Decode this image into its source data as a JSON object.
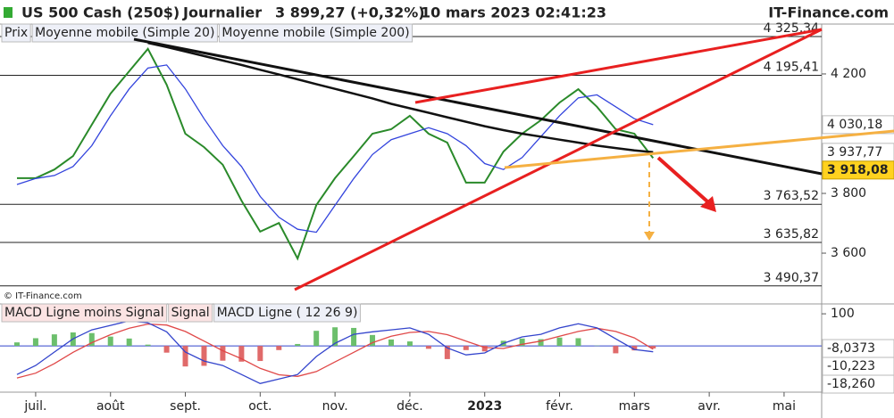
{
  "header": {
    "symbol": "US 500 Cash (250$)",
    "period": "Journalier",
    "quote": "3 899,27 (+0,32%)",
    "datetime": "10 mars 2023 02:41:23",
    "site": "IT-Finance.com"
  },
  "watermark": "© IT-Finance.com",
  "chart_data": [
    {
      "type": "line",
      "categories": [
        null,
        "juil.",
        null,
        null,
        null,
        "août",
        null,
        null,
        null,
        "sept.",
        null,
        null,
        null,
        "oct.",
        null,
        null,
        null,
        "nov.",
        null,
        null,
        null,
        "déc.",
        null,
        null,
        null,
        "2023",
        null,
        null,
        null,
        "févr.",
        null,
        null,
        null,
        "mars",
        null,
        null,
        null,
        "avr.",
        null,
        null,
        null,
        "mai",
        null,
        null
      ],
      "series": [
        {
          "name": "Prix",
          "color": "#2a8a2a",
          "values": [
            3851,
            3851,
            3880,
            3925,
            4030,
            4134,
            4209,
            4284,
            4164,
            4000,
            3955,
            3896,
            3776,
            3672,
            3701,
            3582,
            3761,
            3851,
            3925,
            4000,
            4015,
            4060,
            4000,
            3970,
            3836,
            3836,
            3940,
            4000,
            4045,
            4104,
            4149,
            4090,
            4015,
            4000,
            3918.08,
            null,
            null,
            null,
            null,
            null,
            null,
            null,
            null,
            null
          ],
          "value_labels": [
            null,
            null,
            null,
            null,
            null,
            null,
            null,
            null,
            null,
            null,
            null,
            null,
            null,
            null,
            null,
            null,
            null,
            null,
            null,
            null,
            null,
            null,
            null,
            null,
            null,
            null,
            null,
            null,
            null,
            null,
            null,
            null,
            null,
            null,
            "3 918,08",
            null,
            null,
            null,
            null,
            null,
            null,
            null,
            null,
            null
          ]
        },
        {
          "name": "Moyenne mobile (Simple 20)",
          "color": "#3344dd",
          "values": [
            3830,
            3850,
            3860,
            3890,
            3960,
            4060,
            4150,
            4220,
            4230,
            4150,
            4050,
            3960,
            3890,
            3790,
            3720,
            3680,
            3670,
            3760,
            3850,
            3930,
            3980,
            4000,
            4020,
            4000,
            3960,
            3900,
            3880,
            3920,
            3990,
            4060,
            4120,
            4130,
            4090,
            4050,
            4030.18,
            null,
            null,
            null,
            null,
            null,
            null,
            null,
            null,
            null
          ],
          "value_labels": [
            null,
            null,
            null,
            null,
            null,
            null,
            null,
            null,
            null,
            null,
            null,
            null,
            null,
            null,
            null,
            null,
            null,
            null,
            null,
            null,
            null,
            null,
            null,
            null,
            null,
            null,
            null,
            null,
            null,
            null,
            null,
            null,
            null,
            null,
            "4 030,18",
            null,
            null,
            null,
            null,
            null,
            null,
            null,
            null,
            null
          ]
        },
        {
          "name": "Moyenne mobile (Simple 200)",
          "color": "#111111",
          "values": [
            null,
            null,
            null,
            null,
            null,
            null,
            null,
            4304,
            4290,
            4275,
            4260,
            4245,
            4230,
            4214,
            4198,
            4182,
            4166,
            4150,
            4134,
            4118,
            4100,
            4085,
            4070,
            4055,
            4040,
            4025,
            4012,
            4000,
            3990,
            3980,
            3970,
            3960,
            3952,
            3944,
            3937.77,
            null,
            null,
            null,
            null,
            null,
            null,
            null,
            null,
            null
          ],
          "value_labels": [
            null,
            null,
            null,
            null,
            null,
            null,
            null,
            null,
            null,
            null,
            null,
            null,
            null,
            null,
            null,
            null,
            null,
            null,
            null,
            null,
            null,
            null,
            null,
            null,
            null,
            null,
            null,
            null,
            null,
            null,
            null,
            null,
            null,
            null,
            "3 937,77",
            null,
            null,
            null,
            null,
            null,
            null,
            null,
            null,
            null
          ]
        }
      ],
      "levels": [
        {
          "value": 4325.34,
          "label": "4 325,34"
        },
        {
          "value": 4195.41,
          "label": "4 195,41"
        },
        {
          "value": 3763.52,
          "label": "3 763,52"
        },
        {
          "value": 3635.82,
          "label": "3 635,82"
        },
        {
          "value": 3490.37,
          "label": "3 490,37"
        }
      ],
      "ylim": [
        3433,
        4364
      ],
      "yticks": [
        {
          "value": 4200,
          "label": "4 200"
        },
        {
          "value": 3800,
          "label": "3 800"
        },
        {
          "value": 3600,
          "label": "3 600"
        }
      ]
    },
    {
      "type": "line",
      "series": [
        {
          "name": "MACD Ligne moins Signal",
          "kind": "bar",
          "color": "#e06a6a",
          "positive_color": "#6cbf6c",
          "values": [
            11,
            24,
            36,
            42,
            40,
            29,
            23,
            4,
            -21,
            -64,
            -62,
            -46,
            -49,
            -47,
            -13,
            6,
            47,
            58,
            56,
            34,
            20,
            14,
            -9,
            -41,
            -13,
            -17,
            16,
            23,
            21,
            26,
            24,
            1,
            -23,
            -14,
            -8.0373,
            null,
            null,
            null,
            null,
            null,
            null,
            null,
            null,
            null
          ],
          "value_labels": [
            null,
            null,
            null,
            null,
            null,
            null,
            null,
            null,
            null,
            null,
            null,
            null,
            null,
            null,
            null,
            null,
            null,
            null,
            null,
            null,
            null,
            null,
            null,
            null,
            null,
            null,
            null,
            null,
            null,
            null,
            null,
            null,
            null,
            null,
            "-8,0373",
            null,
            null,
            null,
            null,
            null,
            null,
            null,
            null,
            null
          ]
        },
        {
          "name": "Signal",
          "kind": "line",
          "color": "#e04848",
          "values": [
            -100,
            -85,
            -55,
            -20,
            10,
            35,
            55,
            68,
            65,
            45,
            15,
            -15,
            -40,
            -70,
            -90,
            -95,
            -80,
            -50,
            -20,
            10,
            30,
            42,
            45,
            35,
            15,
            -5,
            -8,
            5,
            15,
            30,
            45,
            55,
            45,
            25,
            -10.223,
            null,
            null,
            null,
            null,
            null,
            null,
            null,
            null,
            null
          ],
          "value_labels": [
            null,
            null,
            null,
            null,
            null,
            null,
            null,
            null,
            null,
            null,
            null,
            null,
            null,
            null,
            null,
            null,
            null,
            null,
            null,
            null,
            null,
            null,
            null,
            null,
            null,
            null,
            null,
            null,
            null,
            null,
            null,
            null,
            null,
            null,
            "-10,223",
            null,
            null,
            null,
            null,
            null,
            null,
            null,
            null,
            null
          ]
        },
        {
          "name": "MACD Ligne ( 12 26 9)",
          "kind": "line",
          "color": "#3344cc",
          "values": [
            -89,
            -61,
            -19,
            22,
            50,
            64,
            78,
            72,
            44,
            -19,
            -47,
            -61,
            -89,
            -117,
            -103,
            -89,
            -33,
            8,
            36,
            44,
            50,
            56,
            36,
            -6,
            -28,
            -22,
            8,
            28,
            36,
            56,
            69,
            56,
            22,
            -11,
            -18.26,
            null,
            null,
            null,
            null,
            null,
            null,
            null,
            null,
            null
          ],
          "value_labels": [
            null,
            null,
            null,
            null,
            null,
            null,
            null,
            null,
            null,
            null,
            null,
            null,
            null,
            null,
            null,
            null,
            null,
            null,
            null,
            null,
            null,
            null,
            null,
            null,
            null,
            null,
            null,
            null,
            null,
            null,
            null,
            null,
            null,
            null,
            "-18,260",
            null,
            null,
            null,
            null,
            null,
            null,
            null,
            null,
            null
          ]
        }
      ],
      "ylim": [
        -144,
        128
      ],
      "yticks": [
        100
      ]
    }
  ]
}
